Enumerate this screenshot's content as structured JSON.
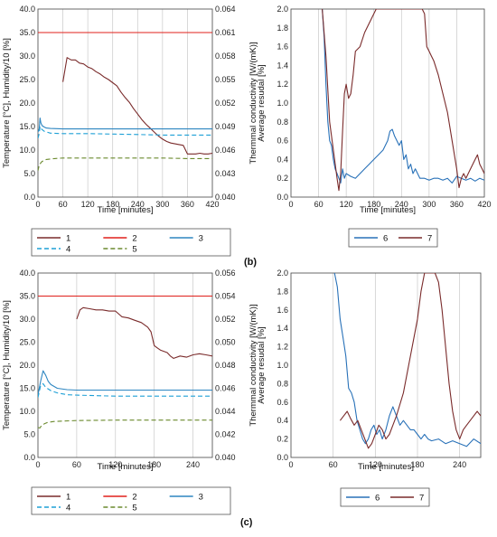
{
  "captions": {
    "b": "(b)",
    "c": "(c)"
  },
  "colors": {
    "s1": "#7a2b2b",
    "s2": "#e0201b",
    "s3": "#2e86c1",
    "s4": "#1ea0d6",
    "s5": "#6b8a2e",
    "s6": "#2871b8",
    "s7": "#7a2b2b",
    "grid": "#c8c8c8"
  },
  "chart_data": [
    {
      "id": "b-left",
      "type": "line",
      "xlabel": "Time [minutes]",
      "ylabel": "Temperature [°C],  Humidity/10 [%]",
      "ylabel2": "Thermmal conductivity [W/(mK)]",
      "xlim": [
        0,
        420
      ],
      "ylim": [
        0,
        40
      ],
      "y2lim": [
        0.04,
        0.064
      ],
      "xticks": [
        "0",
        "60",
        "120",
        "180",
        "240",
        "300",
        "360",
        "420"
      ],
      "yticks": [
        "0.0",
        "5.0",
        "10.0",
        "15.0",
        "20.0",
        "25.0",
        "30.0",
        "35.0",
        "40.0"
      ],
      "y2ticks": [
        "0.040",
        "0.043",
        "0.046",
        "0.049",
        "0.052",
        "0.055",
        "0.058",
        "0.061",
        "0.064"
      ],
      "grid": "vertical",
      "legend_position": "bottom",
      "legend": [
        "1",
        "2",
        "3",
        "4",
        "5"
      ],
      "series": [
        {
          "name": "1",
          "axis": "right",
          "style": "solid",
          "color": "s1",
          "x": [
            60,
            70,
            80,
            90,
            100,
            110,
            120,
            130,
            140,
            150,
            160,
            170,
            180,
            190,
            200,
            210,
            220,
            230,
            240,
            250,
            260,
            270,
            280,
            290,
            300,
            310,
            320,
            330,
            340,
            350,
            360,
            370,
            380,
            390,
            400,
            410,
            420
          ],
          "y": [
            0.0547,
            0.0578,
            0.0575,
            0.0575,
            0.0571,
            0.057,
            0.0566,
            0.0564,
            0.056,
            0.0557,
            0.0553,
            0.055,
            0.0546,
            0.0542,
            0.0534,
            0.0527,
            0.0521,
            0.0513,
            0.0506,
            0.0499,
            0.0493,
            0.0488,
            0.0483,
            0.0478,
            0.0474,
            0.0471,
            0.0469,
            0.0468,
            0.0467,
            0.0466,
            0.0455,
            0.0455,
            0.0455,
            0.0456,
            0.0455,
            0.0455,
            0.0456
          ]
        },
        {
          "name": "2",
          "axis": "left",
          "style": "solid",
          "color": "s2",
          "x": [
            0,
            60,
            120,
            180,
            240,
            300,
            360,
            420
          ],
          "y": [
            35.0,
            35.0,
            35.0,
            35.0,
            35.0,
            35.0,
            35.0,
            35.0
          ]
        },
        {
          "name": "3",
          "axis": "left",
          "style": "solid",
          "color": "s3",
          "x": [
            0,
            3,
            5,
            7,
            10,
            15,
            20,
            30,
            60,
            120,
            180,
            240,
            300,
            360,
            420
          ],
          "y": [
            13.8,
            14.5,
            16.8,
            15.8,
            15.2,
            14.9,
            14.7,
            14.6,
            14.5,
            14.5,
            14.5,
            14.5,
            14.5,
            14.5,
            14.5
          ]
        },
        {
          "name": "4",
          "axis": "left",
          "style": "dashed",
          "color": "s4",
          "x": [
            0,
            3,
            5,
            8,
            15,
            30,
            60,
            120,
            180,
            240,
            300,
            360,
            420
          ],
          "y": [
            12.5,
            13.5,
            15.0,
            14.5,
            14.0,
            13.6,
            13.5,
            13.5,
            13.4,
            13.3,
            13.2,
            13.2,
            13.2
          ]
        },
        {
          "name": "5",
          "axis": "left",
          "style": "dashed",
          "color": "s5",
          "x": [
            0,
            3,
            6,
            10,
            20,
            40,
            60,
            120,
            180,
            240,
            300,
            360,
            420
          ],
          "y": [
            5.6,
            6.8,
            7.2,
            7.6,
            8.0,
            8.2,
            8.3,
            8.3,
            8.3,
            8.3,
            8.3,
            8.2,
            8.2
          ]
        }
      ]
    },
    {
      "id": "b-right",
      "type": "line",
      "xlabel": "Time [minutes]",
      "ylabel": "Average resudal [%]",
      "xlim": [
        0,
        420
      ],
      "ylim": [
        0,
        2.0
      ],
      "xticks": [
        "0",
        "60",
        "120",
        "180",
        "240",
        "300",
        "360",
        "420"
      ],
      "yticks": [
        "0.0",
        "0.2",
        "0.4",
        "0.6",
        "0.8",
        "1.0",
        "1.2",
        "1.4",
        "1.6",
        "1.8",
        "2.0"
      ],
      "grid": "vertical",
      "legend_position": "bottom",
      "legend": [
        "6",
        "7"
      ],
      "series": [
        {
          "name": "6",
          "style": "solid",
          "color": "s6",
          "x": [
            68,
            72,
            76,
            80,
            84,
            88,
            92,
            96,
            100,
            104,
            108,
            112,
            116,
            120,
            130,
            140,
            150,
            160,
            170,
            180,
            190,
            200,
            210,
            215,
            220,
            225,
            230,
            235,
            240,
            245,
            250,
            255,
            260,
            265,
            270,
            280,
            290,
            300,
            310,
            320,
            330,
            340,
            350,
            360,
            370,
            380,
            390,
            400,
            410,
            420
          ],
          "y": [
            2.0,
            1.7,
            1.2,
            0.8,
            0.6,
            0.55,
            0.4,
            0.3,
            0.25,
            0.2,
            0.15,
            0.3,
            0.2,
            0.25,
            0.22,
            0.2,
            0.25,
            0.3,
            0.35,
            0.4,
            0.45,
            0.5,
            0.6,
            0.7,
            0.72,
            0.65,
            0.6,
            0.55,
            0.6,
            0.4,
            0.45,
            0.3,
            0.35,
            0.25,
            0.3,
            0.2,
            0.2,
            0.18,
            0.2,
            0.2,
            0.18,
            0.2,
            0.15,
            0.22,
            0.2,
            0.18,
            0.2,
            0.17,
            0.2,
            0.18
          ]
        },
        {
          "name": "7",
          "style": "solid",
          "color": "s7",
          "x": [
            68,
            76,
            84,
            92,
            100,
            104,
            108,
            112,
            116,
            120,
            125,
            130,
            135,
            140,
            150,
            160,
            170,
            180,
            185,
            190,
            195,
            200,
            280,
            285,
            290,
            295,
            300,
            305,
            310,
            320,
            330,
            340,
            350,
            360,
            365,
            370,
            375,
            380,
            390,
            400,
            405,
            410,
            415,
            420
          ],
          "y": [
            2.0,
            1.5,
            0.8,
            0.5,
            0.2,
            0.07,
            0.25,
            0.7,
            1.1,
            1.2,
            1.05,
            1.1,
            1.3,
            1.55,
            1.6,
            1.75,
            1.85,
            1.95,
            2.0,
            2.0,
            2.0,
            2.0,
            2.0,
            2.0,
            1.95,
            1.6,
            1.55,
            1.5,
            1.45,
            1.3,
            1.1,
            0.9,
            0.6,
            0.3,
            0.1,
            0.2,
            0.25,
            0.2,
            0.3,
            0.4,
            0.45,
            0.35,
            0.3,
            0.25
          ]
        }
      ]
    },
    {
      "id": "c-left",
      "type": "line",
      "xlabel": "Time [minutes]",
      "ylabel": "Temperature [°C],  Humidity/10 [%]",
      "ylabel2": "Thermmal conductivity [W/(mK)]",
      "xlim": [
        0,
        270
      ],
      "ylim": [
        0,
        40
      ],
      "y2lim": [
        0.04,
        0.056
      ],
      "xticks": [
        "0",
        "60",
        "120",
        "180",
        "240"
      ],
      "xtickvals": [
        0,
        60,
        120,
        180,
        240
      ],
      "yticks": [
        "0.0",
        "5.0",
        "10.0",
        "15.0",
        "20.0",
        "25.0",
        "30.0",
        "35.0",
        "40.0"
      ],
      "y2ticks": [
        "0.040",
        "0.042",
        "0.044",
        "0.046",
        "0.048",
        "0.050",
        "0.052",
        "0.054",
        "0.056"
      ],
      "grid": "vertical",
      "legend_position": "bottom",
      "legend": [
        "1",
        "2",
        "3",
        "4",
        "5"
      ],
      "series": [
        {
          "name": "1",
          "axis": "right",
          "style": "solid",
          "color": "s1",
          "x": [
            60,
            65,
            70,
            80,
            90,
            100,
            110,
            120,
            130,
            140,
            150,
            160,
            170,
            175,
            180,
            185,
            190,
            200,
            205,
            210,
            220,
            230,
            240,
            250,
            260,
            270
          ],
          "y": [
            0.052,
            0.0528,
            0.053,
            0.0529,
            0.0528,
            0.0528,
            0.0527,
            0.0527,
            0.0522,
            0.0521,
            0.0519,
            0.0517,
            0.0513,
            0.0509,
            0.0497,
            0.0495,
            0.0493,
            0.0491,
            0.0488,
            0.0486,
            0.0488,
            0.0487,
            0.0489,
            0.049,
            0.0489,
            0.0488
          ]
        },
        {
          "name": "2",
          "axis": "left",
          "style": "solid",
          "color": "s2",
          "x": [
            0,
            60,
            120,
            180,
            240,
            270
          ],
          "y": [
            35.0,
            35.0,
            35.0,
            35.0,
            35.0,
            35.0
          ]
        },
        {
          "name": "3",
          "axis": "left",
          "style": "solid",
          "color": "s3",
          "x": [
            0,
            4,
            8,
            12,
            16,
            20,
            30,
            45,
            60,
            120,
            180,
            240,
            270
          ],
          "y": [
            13.5,
            16.5,
            18.8,
            17.8,
            16.5,
            15.8,
            15.0,
            14.7,
            14.6,
            14.6,
            14.6,
            14.6,
            14.6
          ]
        },
        {
          "name": "4",
          "axis": "left",
          "style": "dashed",
          "color": "s4",
          "x": [
            0,
            4,
            8,
            12,
            20,
            30,
            45,
            60,
            120,
            180,
            240,
            270
          ],
          "y": [
            13.0,
            15.5,
            16.0,
            15.2,
            14.5,
            14.0,
            13.6,
            13.5,
            13.3,
            13.3,
            13.3,
            13.3
          ]
        },
        {
          "name": "5",
          "axis": "left",
          "style": "dashed",
          "color": "s5",
          "x": [
            0,
            3,
            6,
            10,
            15,
            25,
            40,
            60,
            120,
            180,
            240,
            270
          ],
          "y": [
            6.5,
            6.4,
            7.0,
            7.3,
            7.6,
            7.8,
            7.9,
            8.0,
            8.1,
            8.1,
            8.1,
            8.1
          ]
        }
      ]
    },
    {
      "id": "c-right",
      "type": "line",
      "xlabel": "Time [minutes]",
      "ylabel": "Average resudal [%]",
      "xlim": [
        0,
        270
      ],
      "ylim": [
        0,
        2.0
      ],
      "xticks": [
        "0",
        "60",
        "120",
        "180",
        "240"
      ],
      "xtickvals": [
        0,
        60,
        120,
        180,
        240
      ],
      "yticks": [
        "0.0",
        "0.2",
        "0.4",
        "0.6",
        "0.8",
        "1.0",
        "1.2",
        "1.4",
        "1.6",
        "1.8",
        "2.0"
      ],
      "grid": "vertical",
      "legend_position": "bottom",
      "legend": [
        "6",
        "7"
      ],
      "series": [
        {
          "name": "6",
          "style": "solid",
          "color": "s6",
          "x": [
            62,
            66,
            70,
            74,
            78,
            82,
            86,
            90,
            94,
            98,
            102,
            106,
            110,
            114,
            118,
            122,
            126,
            130,
            135,
            140,
            145,
            150,
            155,
            160,
            165,
            170,
            175,
            180,
            185,
            190,
            195,
            200,
            210,
            220,
            230,
            240,
            250,
            260,
            270
          ],
          "y": [
            2.0,
            1.85,
            1.5,
            1.3,
            1.1,
            0.75,
            0.7,
            0.6,
            0.4,
            0.3,
            0.2,
            0.15,
            0.2,
            0.3,
            0.35,
            0.25,
            0.3,
            0.2,
            0.3,
            0.45,
            0.55,
            0.45,
            0.35,
            0.4,
            0.35,
            0.3,
            0.3,
            0.25,
            0.2,
            0.25,
            0.2,
            0.18,
            0.2,
            0.15,
            0.18,
            0.15,
            0.12,
            0.2,
            0.15
          ]
        },
        {
          "name": "7",
          "style": "solid",
          "color": "s7",
          "x": [
            70,
            75,
            80,
            85,
            90,
            95,
            100,
            105,
            110,
            115,
            120,
            125,
            130,
            135,
            140,
            145,
            150,
            160,
            170,
            180,
            185,
            190,
            200,
            205,
            210,
            215,
            220,
            225,
            230,
            235,
            240,
            245,
            250,
            255,
            260,
            265,
            270
          ],
          "y": [
            0.4,
            0.45,
            0.5,
            0.42,
            0.35,
            0.4,
            0.3,
            0.2,
            0.1,
            0.15,
            0.25,
            0.35,
            0.3,
            0.2,
            0.25,
            0.35,
            0.45,
            0.7,
            1.1,
            1.5,
            1.8,
            2.0,
            2.0,
            2.0,
            1.9,
            1.6,
            1.2,
            0.8,
            0.5,
            0.3,
            0.2,
            0.3,
            0.35,
            0.4,
            0.45,
            0.5,
            0.45
          ]
        }
      ]
    }
  ]
}
